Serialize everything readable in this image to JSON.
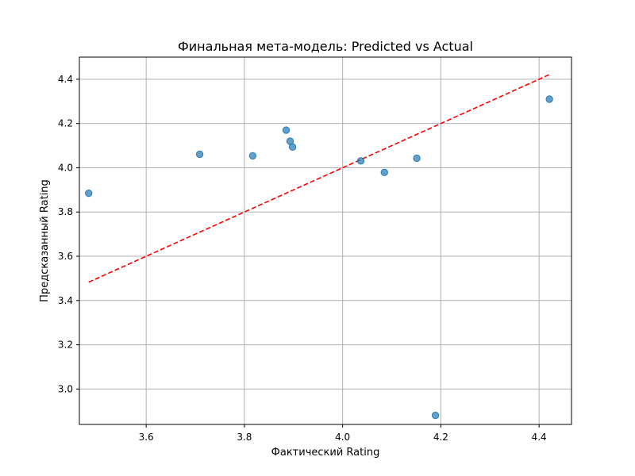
{
  "chart_data": {
    "type": "scatter",
    "title": "Финальная мета-модель: Predicted vs Actual",
    "xlabel": "Фактический Rating",
    "ylabel": "Предсказанный Rating",
    "xlim": [
      3.464,
      4.466
    ],
    "ylim": [
      2.84,
      4.5
    ],
    "x_ticks": [
      3.6,
      3.8,
      4.0,
      4.2,
      4.4
    ],
    "x_tick_labels": [
      "3.6",
      "3.8",
      "4.0",
      "4.2",
      "4.4"
    ],
    "y_ticks": [
      3.0,
      3.2,
      3.4,
      3.6,
      3.8,
      4.0,
      4.2,
      4.4
    ],
    "y_tick_labels": [
      "3.0",
      "3.2",
      "3.4",
      "3.6",
      "3.8",
      "4.0",
      "4.2",
      "4.4"
    ],
    "grid": true,
    "colors": {
      "points": "#1f77b4",
      "reference_line": "#ff0000",
      "grid": "#b0b0b0"
    },
    "series": [
      {
        "x": [
          3.483,
          3.709,
          3.817,
          3.885,
          3.893,
          3.898,
          4.037,
          4.085,
          4.151,
          4.189,
          4.421
        ],
        "y": [
          3.885,
          4.061,
          4.054,
          4.17,
          4.12,
          4.094,
          4.031,
          3.979,
          4.043,
          2.881,
          4.31
        ]
      }
    ],
    "reference_line": {
      "style": "dashed",
      "from": [
        3.483,
        3.483
      ],
      "to": [
        4.421,
        4.421
      ]
    }
  }
}
